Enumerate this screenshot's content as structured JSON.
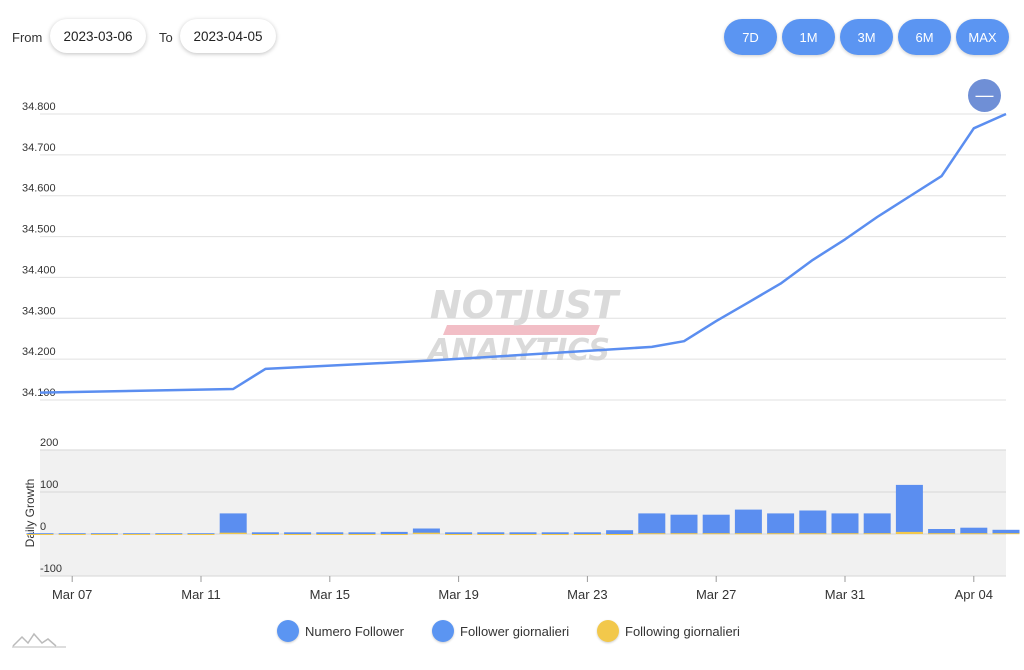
{
  "controls": {
    "from_label": "From",
    "from_value": "2023-03-06",
    "to_label": "To",
    "to_value": "2023-04-05",
    "ranges": [
      "7D",
      "1M",
      "3M",
      "6M",
      "MAX"
    ],
    "zoom_out_label": "—"
  },
  "watermark": {
    "line1": "NOTJUST",
    "line2": "ANALYTICS"
  },
  "colors": {
    "accent": "#5b95f2",
    "line": "#5b8ef0",
    "bar": "#5b8ef0",
    "following": "#f2c84b",
    "zoom": "#6f8fd6"
  },
  "chart_data": [
    {
      "type": "line",
      "series": [
        {
          "name": "Numero Follower",
          "x": [
            "2023-03-06",
            "2023-03-12",
            "2023-03-13",
            "2023-03-18",
            "2023-03-25",
            "2023-03-26",
            "2023-03-27",
            "2023-03-28",
            "2023-03-29",
            "2023-03-30",
            "2023-03-31",
            "2023-04-01",
            "2023-04-02",
            "2023-04-03",
            "2023-04-04",
            "2023-04-05"
          ],
          "y": [
            34118,
            34127,
            34176,
            34196,
            34230,
            34244,
            34293,
            34339,
            34385,
            34443,
            34493,
            34548,
            34598,
            34648,
            34765,
            34800
          ]
        }
      ],
      "xlim": [
        "2023-03-06",
        "2023-04-05"
      ],
      "ylim": [
        34100,
        34800
      ],
      "yticks": [
        "34.100",
        "34.200",
        "34.300",
        "34.400",
        "34.500",
        "34.600",
        "34.700",
        "34.800"
      ],
      "grid": true
    },
    {
      "type": "bar",
      "ylabel": "Daily Growth",
      "ylim": [
        -100,
        200
      ],
      "yticks": [
        "200",
        "100",
        "0",
        "-100"
      ],
      "xticks": [
        "Mar 07",
        "Mar 11",
        "Mar 15",
        "Mar 19",
        "Mar 23",
        "Mar 27",
        "Mar 31",
        "Apr 04"
      ],
      "categories": [
        "2023-03-06",
        "2023-03-07",
        "2023-03-08",
        "2023-03-09",
        "2023-03-10",
        "2023-03-11",
        "2023-03-12",
        "2023-03-13",
        "2023-03-14",
        "2023-03-15",
        "2023-03-16",
        "2023-03-17",
        "2023-03-18",
        "2023-03-19",
        "2023-03-20",
        "2023-03-21",
        "2023-03-22",
        "2023-03-23",
        "2023-03-24",
        "2023-03-25",
        "2023-03-26",
        "2023-03-27",
        "2023-03-28",
        "2023-03-29",
        "2023-03-30",
        "2023-03-31",
        "2023-04-01",
        "2023-04-02",
        "2023-04-03",
        "2023-04-04",
        "2023-04-05"
      ],
      "series": [
        {
          "name": "Follower giornalieri",
          "values": [
            2,
            2,
            2,
            2,
            2,
            2,
            49,
            4,
            4,
            4,
            4,
            5,
            13,
            4,
            4,
            4,
            4,
            4,
            9,
            49,
            46,
            46,
            58,
            49,
            56,
            49,
            49,
            117,
            12,
            15,
            10
          ]
        },
        {
          "name": "Following giornalieri",
          "values": [
            0,
            0,
            0,
            0,
            0,
            0,
            3,
            0,
            0,
            0,
            0,
            0,
            3,
            0,
            0,
            0,
            0,
            0,
            0,
            2,
            2,
            2,
            2,
            2,
            2,
            2,
            2,
            5,
            2,
            2,
            2
          ]
        }
      ],
      "grid": true,
      "legend": "bottom-center"
    }
  ]
}
